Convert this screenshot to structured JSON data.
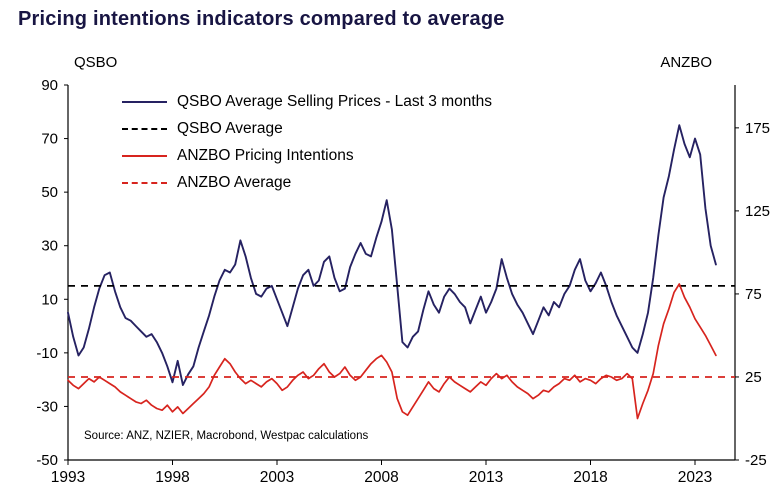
{
  "title": "Pricing intentions indicators compared to average",
  "axes": {
    "left_label": "QSBO",
    "right_label": "ANZBO",
    "left_ticks": [
      90,
      70,
      50,
      30,
      10,
      -10,
      -30,
      -50
    ],
    "right_ticks": [
      175,
      125,
      75,
      25,
      -25
    ],
    "x_ticks": [
      1993,
      1998,
      2003,
      2008,
      2013,
      2018,
      2023
    ]
  },
  "legend": {
    "items": [
      {
        "label": "QSBO Average Selling Prices - Last 3 months",
        "color": "navy",
        "dash": false
      },
      {
        "label": "QSBO Average",
        "color": "black",
        "dash": true
      },
      {
        "label": "ANZBO Pricing Intentions",
        "color": "red",
        "dash": false
      },
      {
        "label": "ANZBO Average",
        "color": "red",
        "dash": true
      }
    ]
  },
  "source": "Source: ANZ, NZIER, Macrobond, Westpac calculations",
  "colors": {
    "navy": "#262262",
    "black": "#000000",
    "red": "#d7241e",
    "title": "#181543"
  },
  "chart_data": {
    "type": "line",
    "x_start": 1993,
    "x_step": 0.25,
    "x_end": 2024,
    "left_axis_range": [
      -50,
      90
    ],
    "right_axis_ticks_range": [
      -25,
      175
    ],
    "grid": false,
    "legend_position": "top-left-inside",
    "series": [
      {
        "name": "QSBO Average Selling Prices - Last 3 months",
        "axis": "left",
        "style": "solid",
        "color": "navy",
        "values": [
          5,
          -4,
          -11,
          -8,
          -1,
          7,
          14,
          19,
          20,
          13,
          7,
          3,
          2,
          0,
          -2,
          -4,
          -3,
          -6,
          -10,
          -15,
          -21,
          -13,
          -22,
          -18,
          -15,
          -8,
          -2,
          4,
          11,
          17,
          21,
          20,
          23,
          32,
          26,
          18,
          12,
          11,
          14,
          15,
          10,
          5,
          0,
          7,
          14,
          19,
          21,
          15,
          17,
          24,
          26,
          18,
          13,
          14,
          22,
          27,
          31,
          27,
          26,
          33,
          39,
          47,
          36,
          15,
          -6,
          -8,
          -4,
          -2,
          6,
          13,
          8,
          5,
          11,
          14,
          12,
          9,
          7,
          1,
          6,
          11,
          5,
          9,
          14,
          25,
          18,
          12,
          8,
          5,
          1,
          -3,
          2,
          7,
          4,
          9,
          7,
          12,
          15,
          21,
          25,
          17,
          13,
          16,
          20,
          15,
          9,
          4,
          0,
          -4,
          -8,
          -10,
          -3,
          5,
          18,
          34,
          48,
          56,
          66,
          75,
          68,
          63,
          70,
          64,
          44,
          30,
          23
        ]
      },
      {
        "name": "QSBO Average",
        "axis": "left",
        "style": "dashed",
        "color": "black",
        "constant": 15
      },
      {
        "name": "ANZBO Pricing Intentions",
        "axis": "right",
        "style": "solid",
        "color": "red",
        "values": [
          23,
          20,
          18,
          21,
          24,
          22,
          25,
          23,
          21,
          19,
          16,
          14,
          12,
          10,
          9,
          11,
          8,
          6,
          5,
          8,
          4,
          7,
          3,
          6,
          9,
          12,
          15,
          19,
          26,
          31,
          36,
          33,
          28,
          24,
          21,
          23,
          21,
          19,
          22,
          24,
          21,
          17,
          19,
          23,
          26,
          28,
          24,
          26,
          30,
          33,
          28,
          25,
          27,
          31,
          26,
          23,
          25,
          29,
          33,
          36,
          38,
          34,
          28,
          12,
          4,
          2,
          7,
          12,
          17,
          22,
          18,
          16,
          21,
          25,
          22,
          20,
          18,
          16,
          19,
          22,
          20,
          24,
          27,
          24,
          26,
          22,
          19,
          17,
          15,
          12,
          14,
          17,
          16,
          19,
          21,
          24,
          23,
          26,
          22,
          24,
          23,
          21,
          24,
          26,
          25,
          23,
          24,
          27,
          24,
          0,
          9,
          17,
          27,
          44,
          57,
          66,
          76,
          81,
          73,
          67,
          60,
          55,
          50,
          44,
          38
        ]
      },
      {
        "name": "ANZBO Average",
        "axis": "right",
        "style": "dashed",
        "color": "red",
        "constant": 25
      }
    ]
  }
}
